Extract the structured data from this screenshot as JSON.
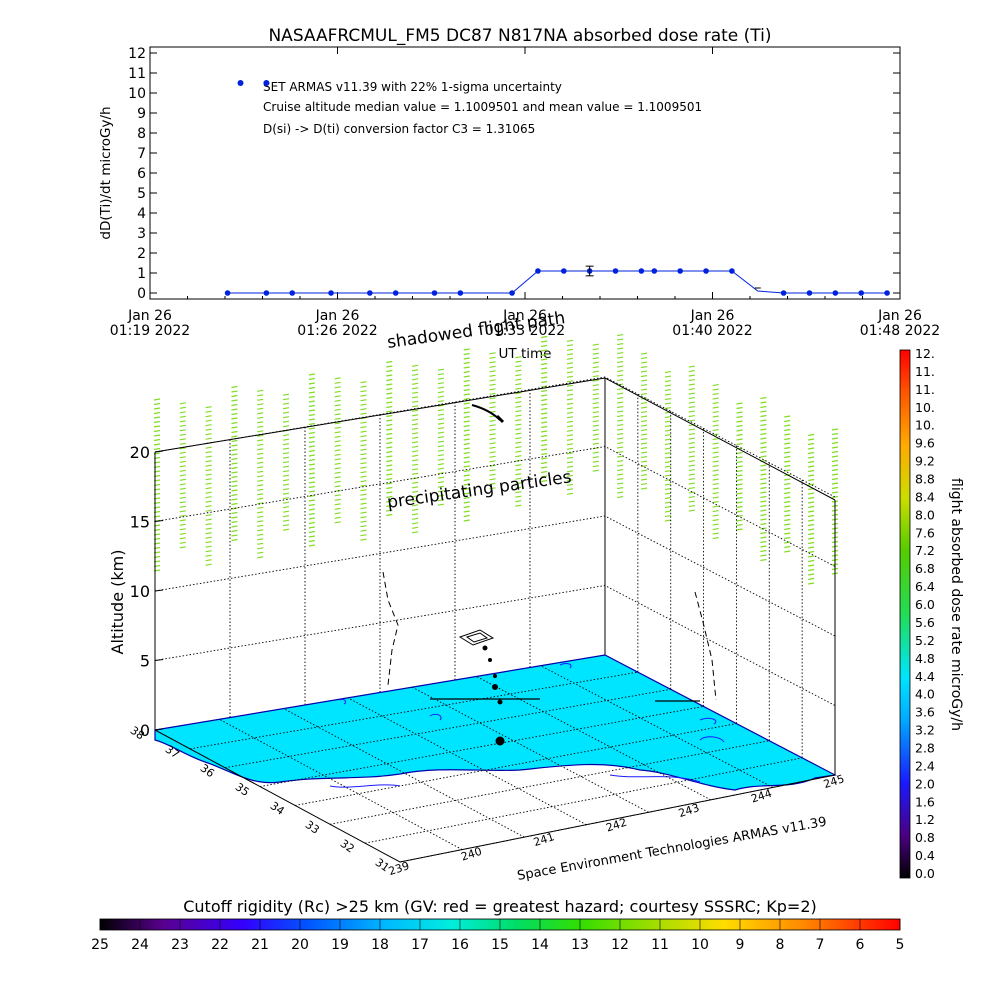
{
  "chart_data": [
    {
      "type": "line",
      "title": "NASAAFRCMUL_FM5 DC87 N817NA absorbed dose rate (Ti)",
      "ylabel": "dD(Ti)/dt microGy/h",
      "xlabel": "UT time",
      "ylim": [
        0,
        12
      ],
      "y_ticks": [
        "0",
        "1",
        "2",
        "3",
        "4",
        "5",
        "6",
        "7",
        "8",
        "9",
        "10",
        "11",
        "12"
      ],
      "x_ticks": [
        {
          "date": "Jan 26",
          "time": "01:19 2022"
        },
        {
          "date": "Jan 26",
          "time": "01:26 2022"
        },
        {
          "date": "Jan 26",
          "time": "01:33 2022"
        },
        {
          "date": "Jan 26",
          "time": "01:40 2022"
        },
        {
          "date": "Jan 26",
          "time": "01:48 2022"
        }
      ],
      "annotations": [
        "SET ARMAS v11.39 with 22% 1-sigma uncertainty",
        "Cruise altitude median value = 1.1009501 and mean value = 1.1009501",
        "D(si) -> D(ti) conversion factor C3 = 1.31065"
      ],
      "series": [
        {
          "x": [
            "01:22:00",
            "01:23:30",
            "01:24:30",
            "01:26:00",
            "01:27:30",
            "01:28:30",
            "01:30:00",
            "01:31:00",
            "01:33:00",
            "01:34:00",
            "01:35:00",
            "01:36:00",
            "01:37:00",
            "01:38:00",
            "01:38:30",
            "01:39:30",
            "01:40:30",
            "01:41:30",
            "01:42:30",
            "01:43:30",
            "01:44:30",
            "01:45:30",
            "01:46:30",
            "01:47:30"
          ],
          "values": [
            0,
            0,
            0,
            0,
            0,
            0,
            0,
            0,
            0,
            1.1,
            1.1,
            1.1,
            1.1,
            1.1,
            1.1,
            1.1,
            1.1,
            1.1,
            0.1,
            0,
            0,
            0,
            0,
            0
          ]
        },
        {
          "x": [
            "01:22:30",
            "01:23:30"
          ],
          "values": [
            10.5,
            10.5
          ]
        }
      ],
      "error_bar": {
        "x": "01:36:00",
        "value": 1.1,
        "uncertainty": "22%"
      },
      "color": "#0022dd"
    },
    {
      "type": "area",
      "ylabel": "Altitude (km)",
      "z_ticks": [
        "0",
        "5",
        "10",
        "15",
        "20"
      ],
      "lat_ticks": [
        "38",
        "37",
        "36",
        "35",
        "34",
        "33",
        "32",
        "31"
      ],
      "lon_ticks": [
        "239",
        "240",
        "241",
        "242",
        "243",
        "244",
        "245"
      ],
      "annotations": [
        "shadowed flight path",
        "precipitating particles",
        "Space Environment Technologies ARMAS v11.39"
      ],
      "surface_color": "#00e5ff"
    }
  ],
  "dose_colorbar": {
    "label": "flight absorbed dose rate microGy/h",
    "ticks": [
      "12.",
      "11.",
      "11.",
      "10.",
      "10.",
      "9.6",
      "9.2",
      "8.8",
      "8.4",
      "8.0",
      "7.6",
      "7.2",
      "6.8",
      "6.4",
      "6.0",
      "5.6",
      "5.2",
      "4.8",
      "4.4",
      "4.0",
      "3.6",
      "3.2",
      "2.8",
      "2.4",
      "2.0",
      "1.6",
      "1.2",
      "0.8",
      "0.4",
      "0.0"
    ]
  },
  "rigidity_colorbar": {
    "title": "Cutoff rigidity (Rc) >25 km (GV: red = greatest hazard; courtesy SSSRC; Kp=2)",
    "ticks": [
      "25",
      "24",
      "23",
      "22",
      "21",
      "20",
      "19",
      "18",
      "17",
      "16",
      "15",
      "14",
      "13",
      "12",
      "11",
      "10",
      "9",
      "8",
      "7",
      "6",
      "5"
    ]
  },
  "colors": {
    "series_blue": "#0022dd",
    "precip_green": "#7fdd22",
    "surface_cyan": "#00e5ff",
    "text_black": "#000000"
  }
}
